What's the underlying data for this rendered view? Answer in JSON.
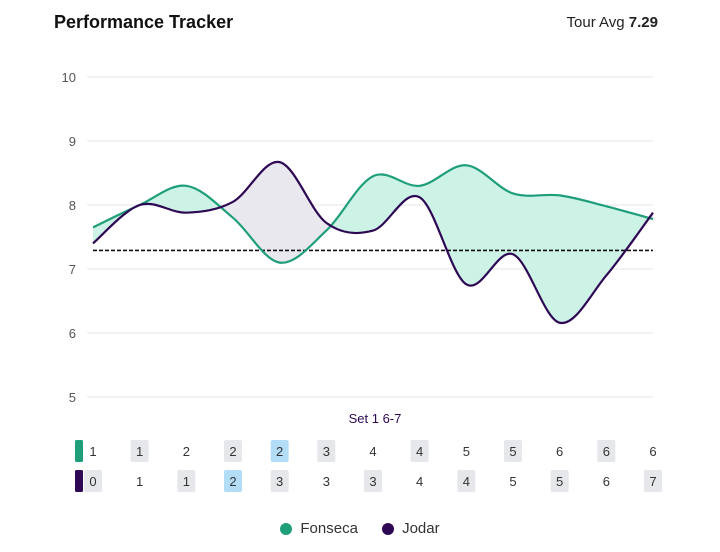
{
  "header": {
    "title": "Performance Tracker",
    "avg_label": "Tour Avg",
    "avg_value": "7.29"
  },
  "colors": {
    "p1": "#1f9e7a",
    "p2": "#2e0854",
    "fill_p1": "#cdf2e6",
    "fill_p2": "#e8e8ee",
    "grid": "#e6e6e6",
    "box": "#e5e7eb",
    "box_highlight": "#b3dcf7"
  },
  "chart_data": {
    "type": "line",
    "title": "Performance Tracker",
    "ylim": [
      5,
      10
    ],
    "yticks": [
      5,
      6,
      7,
      8,
      9,
      10
    ],
    "average": 7.29,
    "set_label": "Set 1 6-7",
    "series": [
      {
        "name": "Fonseca",
        "values": [
          7.65,
          8.0,
          8.3,
          7.8,
          7.1,
          7.6,
          8.45,
          8.3,
          8.62,
          8.18,
          8.15,
          7.98,
          7.78
        ]
      },
      {
        "name": "Jodar",
        "values": [
          7.4,
          8.0,
          7.88,
          8.05,
          8.67,
          7.72,
          7.6,
          8.12,
          6.76,
          7.23,
          6.16,
          6.9,
          7.88
        ]
      }
    ],
    "scores": {
      "Fonseca": [
        {
          "v": "1",
          "box": "none"
        },
        {
          "v": "1",
          "box": "gray"
        },
        {
          "v": "2",
          "box": "none"
        },
        {
          "v": "2",
          "box": "gray"
        },
        {
          "v": "2",
          "box": "blue"
        },
        {
          "v": "3",
          "box": "gray"
        },
        {
          "v": "4",
          "box": "none"
        },
        {
          "v": "4",
          "box": "gray"
        },
        {
          "v": "5",
          "box": "none"
        },
        {
          "v": "5",
          "box": "gray"
        },
        {
          "v": "6",
          "box": "none"
        },
        {
          "v": "6",
          "box": "gray"
        },
        {
          "v": "6",
          "box": "none"
        }
      ],
      "Jodar": [
        {
          "v": "0",
          "box": "gray"
        },
        {
          "v": "1",
          "box": "none"
        },
        {
          "v": "1",
          "box": "gray"
        },
        {
          "v": "2",
          "box": "blue"
        },
        {
          "v": "3",
          "box": "gray"
        },
        {
          "v": "3",
          "box": "none"
        },
        {
          "v": "3",
          "box": "gray"
        },
        {
          "v": "4",
          "box": "none"
        },
        {
          "v": "4",
          "box": "gray"
        },
        {
          "v": "5",
          "box": "none"
        },
        {
          "v": "5",
          "box": "gray"
        },
        {
          "v": "6",
          "box": "none"
        },
        {
          "v": "7",
          "box": "gray"
        }
      ]
    }
  },
  "legend": [
    {
      "label": "Fonseca",
      "color": "#1f9e7a"
    },
    {
      "label": "Jodar",
      "color": "#2e0854"
    }
  ]
}
